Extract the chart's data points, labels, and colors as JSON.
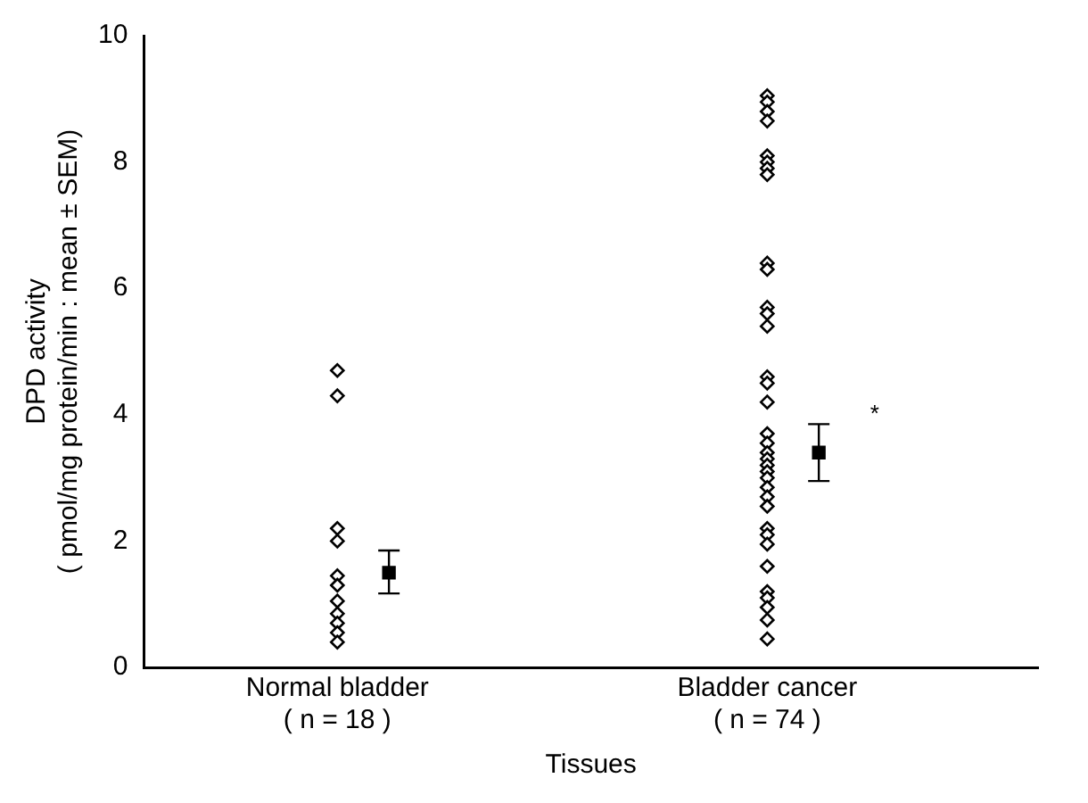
{
  "chart_data": {
    "type": "scatter",
    "xlabel": "Tissues",
    "ylabel": "DPD activity\n( pmol/mg protein/min : mean ± SEM)",
    "categories": [
      "Normal bladder\n( n = 18 )",
      "Bladder cancer\n( n = 74 )"
    ],
    "series": [
      {
        "color": "#000000",
        "marker": "diamond",
        "x": [
          "Normal bladder\n( n = 18 )",
          "Normal bladder\n( n = 18 )",
          "Normal bladder\n( n = 18 )",
          "Normal bladder\n( n = 18 )",
          "Normal bladder\n( n = 18 )",
          "Normal bladder\n( n = 18 )",
          "Normal bladder\n( n = 18 )",
          "Normal bladder\n( n = 18 )",
          "Normal bladder\n( n = 18 )",
          "Normal bladder\n( n = 18 )",
          "Normal bladder\n( n = 18 )",
          "Bladder cancer\n( n = 74 )",
          "Bladder cancer\n( n = 74 )",
          "Bladder cancer\n( n = 74 )",
          "Bladder cancer\n( n = 74 )",
          "Bladder cancer\n( n = 74 )",
          "Bladder cancer\n( n = 74 )",
          "Bladder cancer\n( n = 74 )",
          "Bladder cancer\n( n = 74 )",
          "Bladder cancer\n( n = 74 )",
          "Bladder cancer\n( n = 74 )",
          "Bladder cancer\n( n = 74 )",
          "Bladder cancer\n( n = 74 )",
          "Bladder cancer\n( n = 74 )",
          "Bladder cancer\n( n = 74 )",
          "Bladder cancer\n( n = 74 )",
          "Bladder cancer\n( n = 74 )",
          "Bladder cancer\n( n = 74 )",
          "Bladder cancer\n( n = 74 )",
          "Bladder cancer\n( n = 74 )",
          "Bladder cancer\n( n = 74 )",
          "Bladder cancer\n( n = 74 )",
          "Bladder cancer\n( n = 74 )",
          "Bladder cancer\n( n = 74 )",
          "Bladder cancer\n( n = 74 )",
          "Bladder cancer\n( n = 74 )",
          "Bladder cancer\n( n = 74 )",
          "Bladder cancer\n( n = 74 )",
          "Bladder cancer\n( n = 74 )",
          "Bladder cancer\n( n = 74 )",
          "Bladder cancer\n( n = 74 )",
          "Bladder cancer\n( n = 74 )",
          "Bladder cancer\n( n = 74 )",
          "Bladder cancer\n( n = 74 )",
          "Bladder cancer\n( n = 74 )",
          "Bladder cancer\n( n = 74 )"
        ],
        "values": [
          4.7,
          4.3,
          2.2,
          2.0,
          1.45,
          1.3,
          1.05,
          0.85,
          0.7,
          0.55,
          0.4,
          9.05,
          8.95,
          8.8,
          8.65,
          8.1,
          8.0,
          7.9,
          7.8,
          6.4,
          6.3,
          5.7,
          5.6,
          5.4,
          4.6,
          4.5,
          4.2,
          3.7,
          3.55,
          3.4,
          3.3,
          3.2,
          3.1,
          3.0,
          2.85,
          2.7,
          2.55,
          2.2,
          2.1,
          1.95,
          1.6,
          1.2,
          1.1,
          0.95,
          0.75,
          0.45
        ]
      },
      {
        "color": "#000000",
        "marker": "square",
        "x": [
          "Normal bladder\n( n = 18 )",
          "Bladder cancer\n( n = 74 )"
        ],
        "values": [
          1.5,
          3.4
        ],
        "errors": [
          [
            1.17,
            1.85
          ],
          [
            2.95,
            3.85
          ]
        ]
      }
    ],
    "annotations": [
      "*"
    ],
    "ylim": [
      0,
      10
    ],
    "yticks": [
      0,
      2,
      4,
      6,
      8,
      10
    ],
    "grid": false,
    "legend": false
  }
}
